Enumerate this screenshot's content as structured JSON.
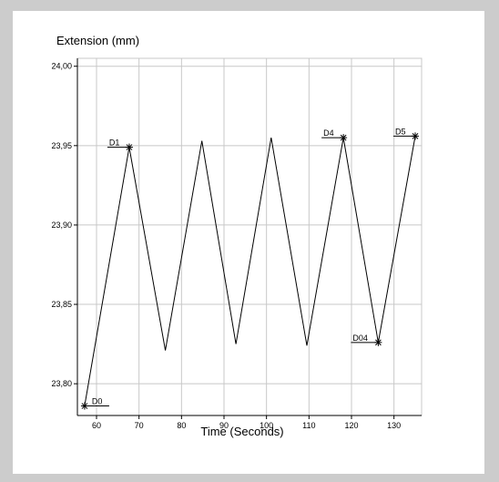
{
  "chart_data": {
    "type": "line",
    "title": "Extension (mm)",
    "xlabel": "Time (Seconds)",
    "ylabel": "",
    "xlim": [
      55.5,
      136.5
    ],
    "ylim": [
      23.78,
      24.005
    ],
    "xticks": [
      60,
      70,
      80,
      90,
      100,
      110,
      120,
      130
    ],
    "yticks": [
      23.8,
      23.85,
      23.9,
      23.95,
      24.0
    ],
    "ytick_labels": [
      "23,80",
      "23,85",
      "23,90",
      "23,95",
      "24,00"
    ],
    "grid": true,
    "colors": {
      "line": "#000000",
      "grid": "#c8c8c8",
      "axis": "#000000"
    },
    "series": [
      {
        "x": [
          57.2,
          67.7,
          76.2,
          84.8,
          92.8,
          101.1,
          109.5,
          118.1,
          126.3,
          135
        ],
        "y": [
          23.786,
          23.949,
          23.821,
          23.953,
          23.825,
          23.955,
          23.824,
          23.955,
          23.826,
          23.956
        ]
      }
    ],
    "annotations": [
      {
        "label": "D0",
        "x": 57.2,
        "y": 23.786,
        "side": "right"
      },
      {
        "label": "D1",
        "x": 67.7,
        "y": 23.949,
        "side": "left"
      },
      {
        "label": "D4",
        "x": 118.1,
        "y": 23.955,
        "side": "left"
      },
      {
        "label": "D04",
        "x": 126.3,
        "y": 23.826,
        "side": "left"
      },
      {
        "label": "D5",
        "x": 135,
        "y": 23.956,
        "side": "left"
      }
    ]
  }
}
